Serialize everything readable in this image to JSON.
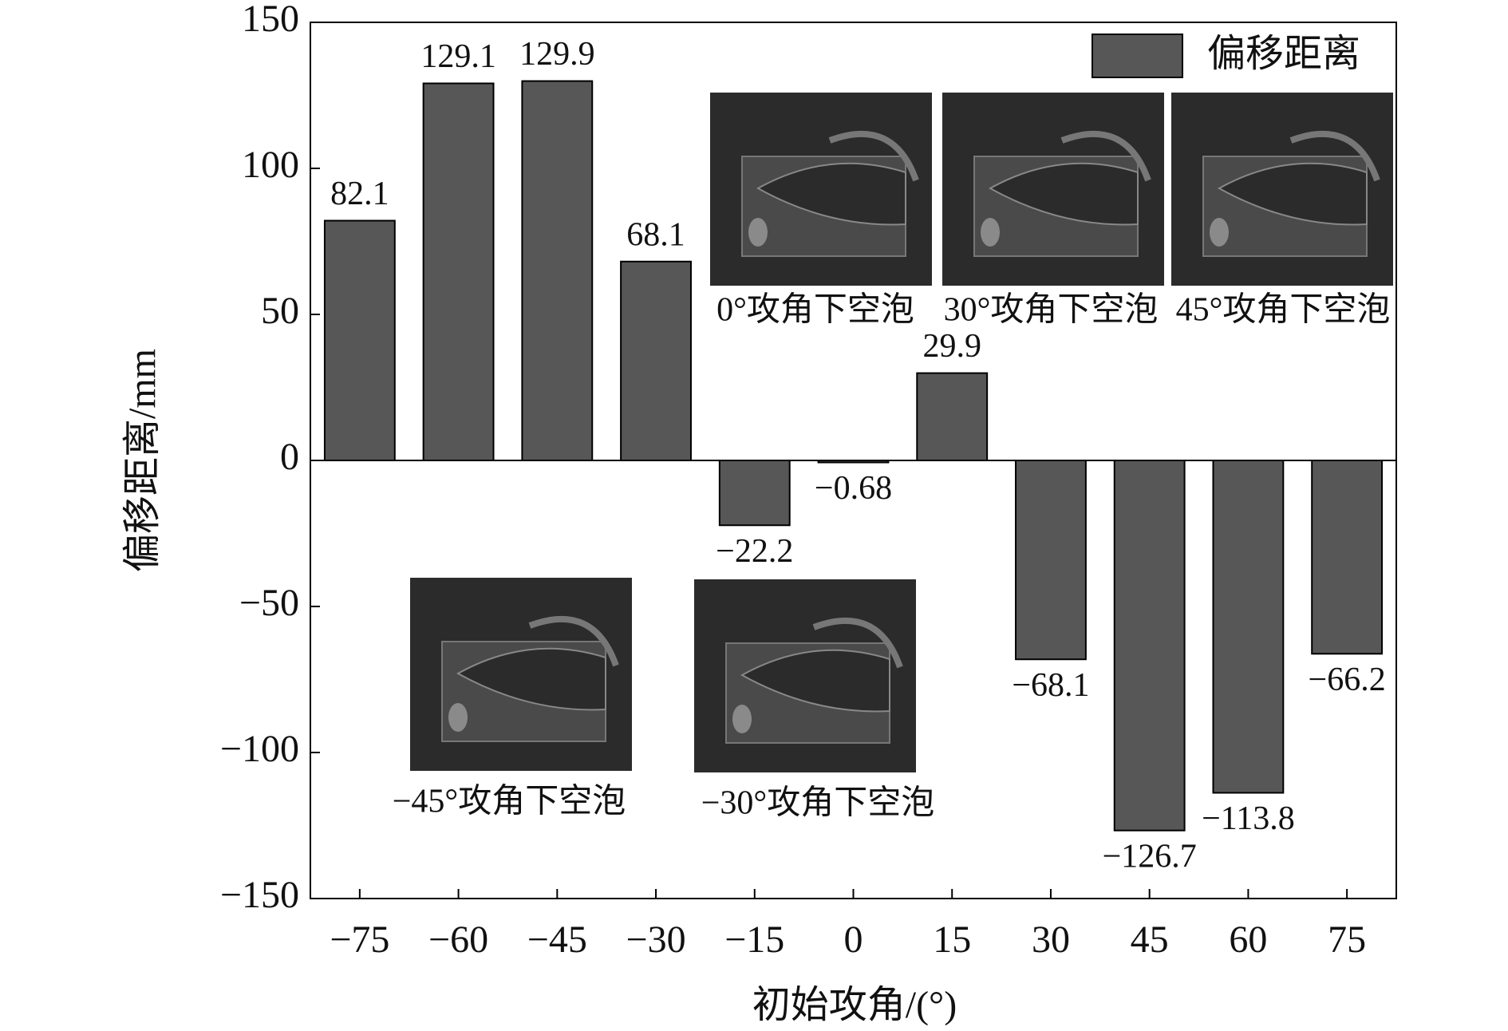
{
  "chart_data": {
    "type": "bar",
    "xlabel": "初始攻角/(°)",
    "ylabel": "偏移距离/mm",
    "categories": [
      "−75",
      "−60",
      "−45",
      "−30",
      "−15",
      "0",
      "15",
      "30",
      "45",
      "60",
      "75"
    ],
    "series": [
      {
        "name": "偏移距离",
        "color": "#575757",
        "values": [
          82.1,
          129.1,
          129.9,
          68.1,
          -22.2,
          -0.68,
          29.9,
          -68.1,
          -126.7,
          -113.8,
          -66.2
        ],
        "value_labels": [
          "82.1",
          "129.1",
          "129.9",
          "68.1",
          "−22.2",
          "−0.68",
          "29.9",
          "−68.1",
          "−126.7",
          "−113.8",
          "−66.2"
        ]
      }
    ],
    "ylim": [
      -150,
      150
    ],
    "yticks": [
      {
        "value": -150,
        "label": "−150"
      },
      {
        "value": -100,
        "label": "−100"
      },
      {
        "value": -50,
        "label": "−50"
      },
      0,
      50,
      100,
      150
    ],
    "legend": "upper right",
    "insets": [
      {
        "caption": "0°攻角下空泡"
      },
      {
        "caption": "30°攻角下空泡"
      },
      {
        "caption": "45°攻角下空泡"
      },
      {
        "caption": "−45°攻角下空泡"
      },
      {
        "caption": "−30°攻角下空泡"
      }
    ]
  }
}
